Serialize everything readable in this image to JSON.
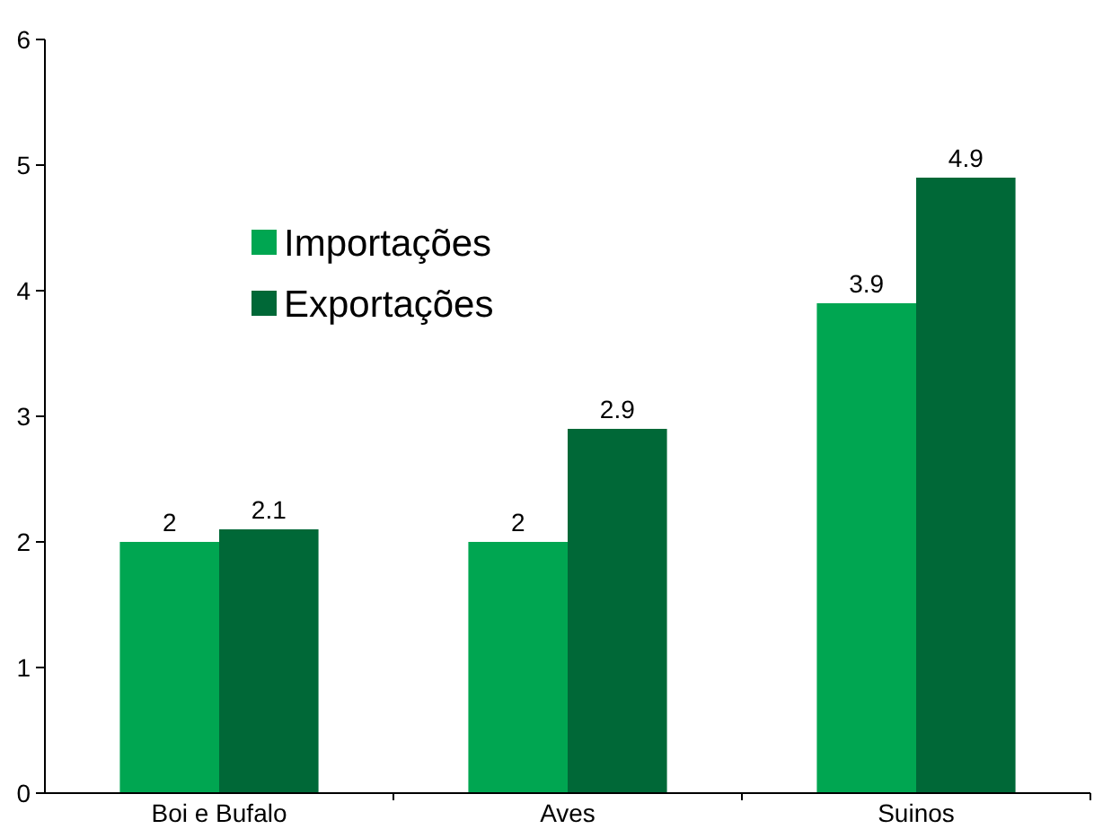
{
  "chart_data": {
    "type": "bar",
    "categories": [
      "Boi e Bufalo",
      "Aves",
      "Suinos"
    ],
    "series": [
      {
        "name": "Importações",
        "color": "#00a651",
        "values": [
          2,
          2,
          3.9
        ]
      },
      {
        "name": "Exportações",
        "color": "#006837",
        "values": [
          2.1,
          2.9,
          4.9
        ]
      }
    ],
    "ylim": [
      0,
      6
    ],
    "yticks": [
      0,
      1,
      2,
      3,
      4,
      5,
      6
    ],
    "data_labels": true,
    "legend": "top left",
    "grid": false
  }
}
